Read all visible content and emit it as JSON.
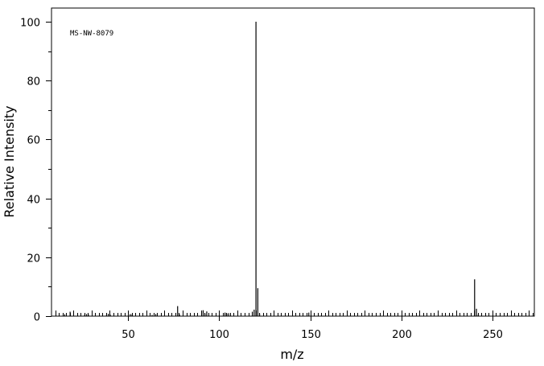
{
  "chart_data": {
    "type": "bar",
    "title": "",
    "annotation": "MS-NW-8079",
    "xlabel": "m/z",
    "ylabel": "Relative Intensity",
    "xlim": [
      8,
      273
    ],
    "ylim": [
      0,
      100
    ],
    "xticks": [
      50,
      100,
      150,
      200,
      250
    ],
    "yticks": [
      0,
      20,
      40,
      60,
      80,
      100
    ],
    "grid": false,
    "series": [
      {
        "peaks": [
          {
            "x": 15,
            "y": 0.6
          },
          {
            "x": 18,
            "y": 1.5
          },
          {
            "x": 26,
            "y": 0.5
          },
          {
            "x": 27,
            "y": 0.7
          },
          {
            "x": 28,
            "y": 0.6
          },
          {
            "x": 38,
            "y": 0.5
          },
          {
            "x": 39,
            "y": 0.8
          },
          {
            "x": 40,
            "y": 0.5
          },
          {
            "x": 51,
            "y": 0.7
          },
          {
            "x": 52,
            "y": 0.6
          },
          {
            "x": 63,
            "y": 0.4
          },
          {
            "x": 65,
            "y": 0.7
          },
          {
            "x": 77,
            "y": 3.4
          },
          {
            "x": 78,
            "y": 0.6
          },
          {
            "x": 91,
            "y": 2.0
          },
          {
            "x": 92,
            "y": 0.9
          },
          {
            "x": 93,
            "y": 1.6
          },
          {
            "x": 103,
            "y": 1.2
          },
          {
            "x": 104,
            "y": 0.9
          },
          {
            "x": 105,
            "y": 1.0
          },
          {
            "x": 118,
            "y": 1.5
          },
          {
            "x": 119,
            "y": 2.2
          },
          {
            "x": 120,
            "y": 100
          },
          {
            "x": 121,
            "y": 9.5
          },
          {
            "x": 122,
            "y": 0.9
          },
          {
            "x": 149,
            "y": 1.2
          },
          {
            "x": 240,
            "y": 12.5
          },
          {
            "x": 241,
            "y": 2.5
          },
          {
            "x": 242,
            "y": 0.5
          }
        ]
      }
    ]
  }
}
